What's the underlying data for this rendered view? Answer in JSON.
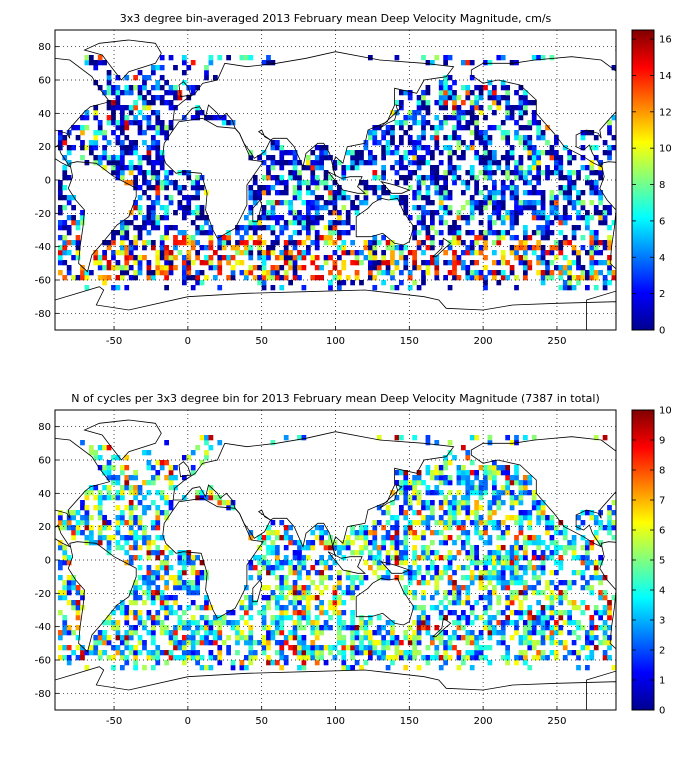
{
  "figure": {
    "colors": {
      "background": "#ffffff",
      "frame": "#000000",
      "coast": "#000000",
      "grid": "#000000"
    },
    "colormap": "jet",
    "panels": [
      {
        "title": "3x3 degree bin-averaged 2013 February mean Deep Velocity Magnitude, cm/s",
        "xlim": [
          -90,
          290
        ],
        "ylim": [
          -90,
          90
        ],
        "xticks": [
          "-50",
          "0",
          "50",
          "100",
          "150",
          "200",
          "250"
        ],
        "yticks": [
          "80",
          "60",
          "40",
          "20",
          "0",
          "-20",
          "-40",
          "-60",
          "-80"
        ],
        "colorbar": {
          "min": 0,
          "max": 16.5,
          "ticks": [
            "0",
            "2",
            "4",
            "6",
            "8",
            "10",
            "12",
            "14",
            "16"
          ]
        }
      },
      {
        "title": "N of cycles per 3x3 degree bin for 2013 February mean Deep Velocity Magnitude (7387 in total)",
        "xlim": [
          -90,
          290
        ],
        "ylim": [
          -90,
          90
        ],
        "xticks": [
          "-50",
          "0",
          "50",
          "100",
          "150",
          "200",
          "250"
        ],
        "yticks": [
          "80",
          "60",
          "40",
          "20",
          "0",
          "-20",
          "-40",
          "-60",
          "-80"
        ],
        "colorbar": {
          "min": 0,
          "max": 10,
          "ticks": [
            "0",
            "1",
            "2",
            "3",
            "4",
            "5",
            "6",
            "7",
            "8",
            "9",
            "10"
          ]
        }
      }
    ]
  }
}
